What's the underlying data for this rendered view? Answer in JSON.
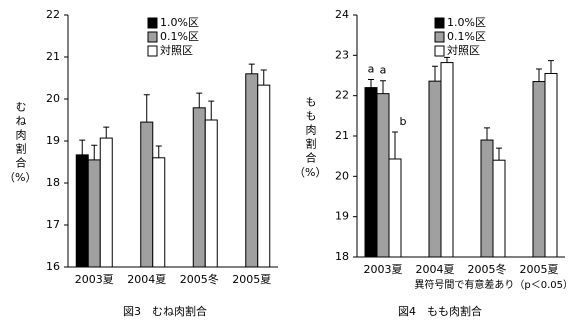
{
  "chart_data": [
    {
      "type": "bar",
      "caption": "図3　むね肉割合",
      "ylabel": "むね肉割合",
      "ylabel_unit": "（%）",
      "categories": [
        "2003夏",
        "2004夏",
        "2005冬",
        "2005夏"
      ],
      "series": [
        {
          "name": "1.0%区",
          "color": "#000000",
          "values": [
            18.67,
            null,
            null,
            null
          ],
          "errors": [
            0.35,
            null,
            null,
            null
          ]
        },
        {
          "name": "0.1%区",
          "color": "#a0a0a0",
          "values": [
            18.55,
            19.45,
            19.79,
            20.6
          ],
          "errors": [
            0.35,
            0.65,
            0.35,
            0.23
          ]
        },
        {
          "name": "対照区",
          "color": "#ffffff",
          "values": [
            19.07,
            18.6,
            19.5,
            20.33
          ],
          "errors": [
            0.26,
            0.28,
            0.45,
            0.36
          ]
        }
      ],
      "ylim": [
        16,
        22
      ],
      "yticks": [
        16,
        17,
        18,
        19,
        20,
        21,
        22
      ]
    },
    {
      "type": "bar",
      "caption": "図4　もも肉割合",
      "ylabel": "もも肉割合",
      "ylabel_unit": "（%）",
      "note": "異符号間で有意差あり（p＜0.05）",
      "categories": [
        "2003夏",
        "2004夏",
        "2005冬",
        "2005夏"
      ],
      "series": [
        {
          "name": "1.0%区",
          "color": "#000000",
          "values": [
            22.2,
            null,
            null,
            null
          ],
          "errors": [
            0.2,
            null,
            null,
            null
          ],
          "letters": [
            "a",
            null,
            null,
            null
          ]
        },
        {
          "name": "0.1%区",
          "color": "#a0a0a0",
          "values": [
            22.05,
            22.36,
            20.9,
            22.35
          ],
          "errors": [
            0.32,
            0.37,
            0.3,
            0.31
          ],
          "letters": [
            "a",
            null,
            null,
            null
          ]
        },
        {
          "name": "対照区",
          "color": "#ffffff",
          "values": [
            20.43,
            22.82,
            20.4,
            22.55
          ],
          "errors": [
            0.67,
            0.13,
            0.3,
            0.32
          ],
          "letters": [
            "b",
            null,
            null,
            null
          ]
        }
      ],
      "ylim": [
        18,
        24
      ],
      "yticks": [
        18,
        19,
        20,
        21,
        22,
        23,
        24
      ]
    }
  ]
}
